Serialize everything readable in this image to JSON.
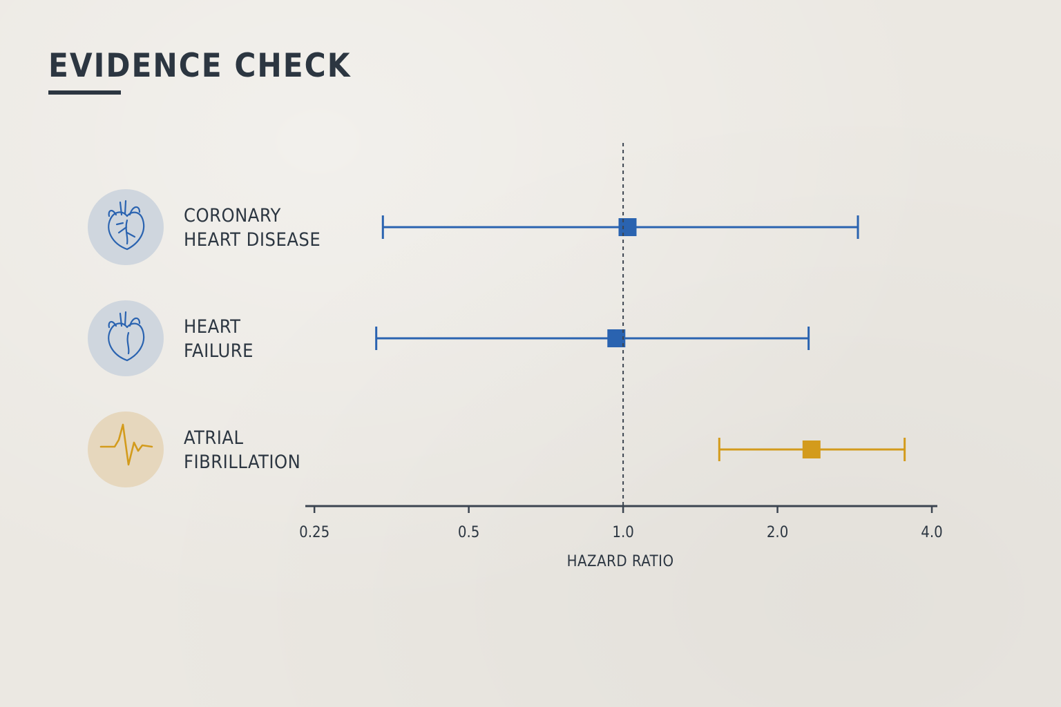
{
  "title": "EVIDENCE CHECK",
  "colors": {
    "blue": "#2a63b0",
    "gold": "#d39b1c",
    "blue_badge": "#cfd6de",
    "gold_badge": "#e6d7bd",
    "axis": "#3b4450"
  },
  "chart_data": {
    "type": "forest",
    "xlabel": "HAZARD RATIO",
    "xscale": "log2",
    "xlim": [
      0.24,
      4.1
    ],
    "reference_line": 1.0,
    "ticks": [
      {
        "value": 0.25,
        "label": "0.25"
      },
      {
        "value": 0.5,
        "label": "0.5"
      },
      {
        "value": 1.0,
        "label": "1.0"
      },
      {
        "value": 2.0,
        "label": "2.0"
      },
      {
        "value": 4.0,
        "label": "4.0"
      }
    ],
    "rows": [
      {
        "label_lines": [
          "CORONARY",
          "HEART DISEASE"
        ],
        "icon": "heart-icon",
        "estimate": 1.02,
        "lower": 0.34,
        "upper": 2.87,
        "color": "#2a63b0",
        "badge": "#cfd6de"
      },
      {
        "label_lines": [
          "HEART",
          "FAILURE"
        ],
        "icon": "heart-icon",
        "estimate": 0.97,
        "lower": 0.33,
        "upper": 2.3,
        "color": "#2a63b0",
        "badge": "#cfd6de"
      },
      {
        "label_lines": [
          "ATRIAL",
          "FIBRILLATION"
        ],
        "icon": "heartbeat-icon",
        "estimate": 2.33,
        "lower": 1.54,
        "upper": 3.54,
        "color": "#d39b1c",
        "badge": "#e6d7bd"
      }
    ]
  }
}
